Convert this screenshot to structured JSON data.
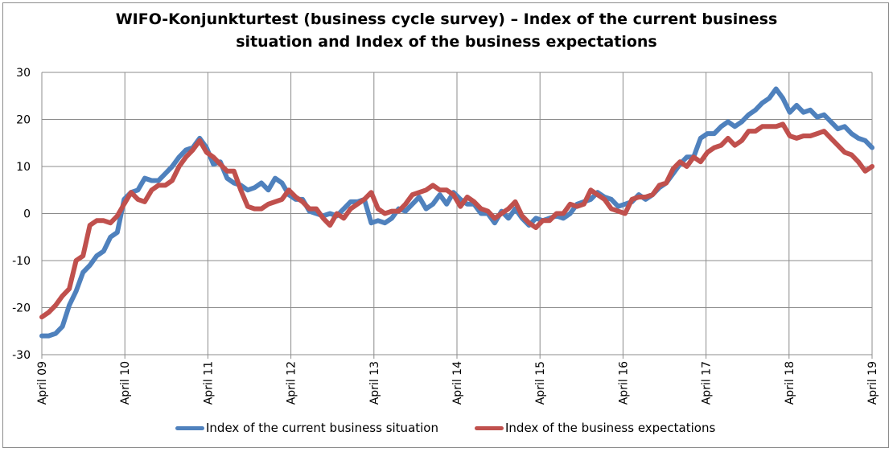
{
  "chart_data": {
    "type": "line",
    "title_line1": "WIFO-Konjunkturtest (business cycle survey) – Index of the current business",
    "title_line2": "situation and Index of the business expectations",
    "xlabel": "",
    "ylabel": "",
    "ylim": [
      -30,
      30
    ],
    "yticks": [
      "30",
      "20",
      "10",
      "0",
      "-10",
      "-20",
      "-30"
    ],
    "grid": true,
    "legend_position": "bottom",
    "x_tick_labels": [
      "April 09",
      "April 10",
      "April 11",
      "April 12",
      "April 13",
      "April 14",
      "April 15",
      "April 16",
      "April 17",
      "April 18",
      "April 19"
    ],
    "x_start": "April 2009",
    "x_end": "April 2019",
    "series": [
      {
        "name": "Index of the current business situation",
        "color": "#4f81bd",
        "values": [
          -26.0,
          -26.0,
          -25.5,
          -24.0,
          -19.5,
          -16.5,
          -12.5,
          -11.0,
          -9.0,
          -8.0,
          -5.0,
          -4.0,
          3.0,
          4.5,
          5.0,
          7.5,
          7.0,
          7.0,
          8.5,
          10.0,
          12.0,
          13.5,
          14.0,
          16.0,
          14.0,
          10.5,
          11.0,
          7.5,
          6.5,
          6.0,
          5.0,
          5.5,
          6.5,
          5.0,
          7.5,
          6.5,
          4.0,
          3.0,
          3.0,
          0.5,
          0.0,
          -0.5,
          0.0,
          -0.5,
          1.0,
          2.5,
          2.5,
          3.0,
          -2.0,
          -1.5,
          -2.0,
          -1.0,
          1.0,
          0.5,
          2.0,
          3.5,
          1.0,
          2.0,
          4.0,
          2.0,
          4.5,
          3.0,
          2.0,
          2.0,
          0.0,
          0.0,
          -2.0,
          0.5,
          -1.0,
          1.0,
          -1.0,
          -2.5,
          -1.0,
          -1.5,
          -1.0,
          -0.5,
          -1.0,
          0.0,
          2.0,
          2.5,
          3.0,
          4.5,
          3.5,
          3.0,
          1.5,
          2.0,
          2.5,
          4.0,
          3.0,
          4.0,
          5.5,
          6.5,
          8.5,
          10.5,
          12.0,
          12.0,
          16.0,
          17.0,
          17.0,
          18.5,
          19.5,
          18.5,
          19.5,
          21.0,
          22.0,
          23.5,
          24.5,
          26.5,
          24.5,
          21.5,
          23.0,
          21.5,
          22.0,
          20.5,
          21.0,
          19.5,
          18.0,
          18.5,
          17.0,
          16.0,
          15.5,
          14.0
        ]
      },
      {
        "name": "Index of the business expectations",
        "color": "#c0504d",
        "values": [
          -22.0,
          -21.0,
          -19.5,
          -17.5,
          -16.0,
          -10.0,
          -9.0,
          -2.5,
          -1.5,
          -1.5,
          -2.0,
          -0.5,
          2.0,
          4.5,
          3.0,
          2.5,
          5.0,
          6.0,
          6.0,
          7.0,
          10.0,
          12.0,
          13.5,
          15.5,
          13.0,
          12.0,
          10.5,
          9.0,
          9.0,
          5.0,
          1.5,
          1.0,
          1.0,
          2.0,
          2.5,
          3.0,
          5.0,
          3.5,
          2.5,
          1.0,
          1.0,
          -1.0,
          -2.5,
          0.0,
          -1.0,
          1.0,
          2.0,
          3.0,
          4.5,
          1.0,
          0.0,
          0.5,
          0.5,
          2.0,
          4.0,
          4.5,
          5.0,
          6.0,
          5.0,
          5.0,
          4.0,
          1.5,
          3.5,
          2.5,
          1.0,
          0.5,
          -1.0,
          0.0,
          1.0,
          2.5,
          -0.5,
          -2.0,
          -3.0,
          -1.5,
          -1.5,
          0.0,
          0.0,
          2.0,
          1.5,
          2.0,
          5.0,
          4.0,
          3.0,
          1.0,
          0.5,
          0.0,
          3.0,
          3.5,
          3.5,
          4.0,
          6.0,
          6.5,
          9.5,
          11.0,
          10.0,
          12.0,
          11.0,
          13.0,
          14.0,
          14.5,
          16.0,
          14.5,
          15.5,
          17.5,
          17.5,
          18.5,
          18.5,
          18.5,
          19.0,
          16.5,
          16.0,
          16.5,
          16.5,
          17.0,
          17.5,
          16.0,
          14.5,
          13.0,
          12.5,
          11.0,
          9.0,
          10.0
        ]
      }
    ]
  }
}
